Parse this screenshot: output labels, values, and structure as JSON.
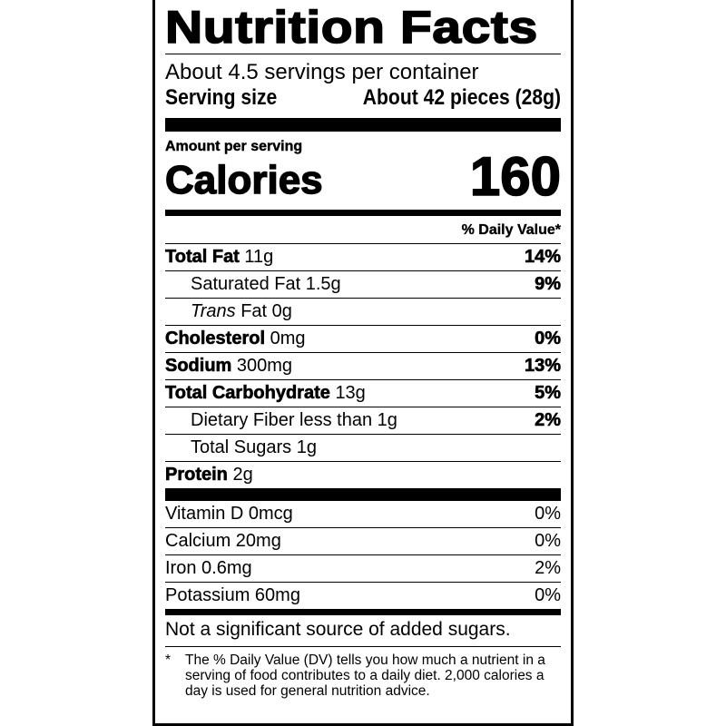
{
  "title": "Nutrition Facts",
  "servings_per_container": "About 4.5 servings per container",
  "serving_size": {
    "label": "Serving size",
    "value": "About 42 pieces (28g)"
  },
  "amount_per_serving": "Amount per serving",
  "calories": {
    "label": "Calories",
    "value": "160"
  },
  "daily_value_header": "% Daily Value*",
  "nutrients": [
    {
      "name": "Total Fat",
      "amount": "11g",
      "dv": "14%"
    },
    {
      "name": "Saturated Fat",
      "amount": "1.5g",
      "dv": "9%"
    },
    {
      "name_italic": "Trans",
      "name": "Fat",
      "amount": "0g",
      "dv": ""
    },
    {
      "name": "Cholesterol",
      "amount": "0mg",
      "dv": "0%"
    },
    {
      "name": "Sodium",
      "amount": "300mg",
      "dv": "13%"
    },
    {
      "name": "Total Carbohydrate",
      "amount": "13g",
      "dv": "5%"
    },
    {
      "name": "Dietary Fiber",
      "amount": "less than 1g",
      "dv": "2%"
    },
    {
      "name": "Total Sugars",
      "amount": "1g",
      "dv": ""
    },
    {
      "name": "Protein",
      "amount": "2g",
      "dv": ""
    }
  ],
  "vitamins": [
    {
      "label": "Vitamin D 0mcg",
      "dv": "0%"
    },
    {
      "label": "Calcium 20mg",
      "dv": "0%"
    },
    {
      "label": "Iron 0.6mg",
      "dv": "2%"
    },
    {
      "label": "Potassium 60mg",
      "dv": "0%"
    }
  ],
  "added_sugars_note": "Not a significant source of added sugars.",
  "footnote": {
    "star": "*",
    "text": "The % Daily Value (DV) tells you how much a nutrient in a serving of food contributes to a daily diet. 2,000 calories a day is used for general nutrition advice."
  }
}
